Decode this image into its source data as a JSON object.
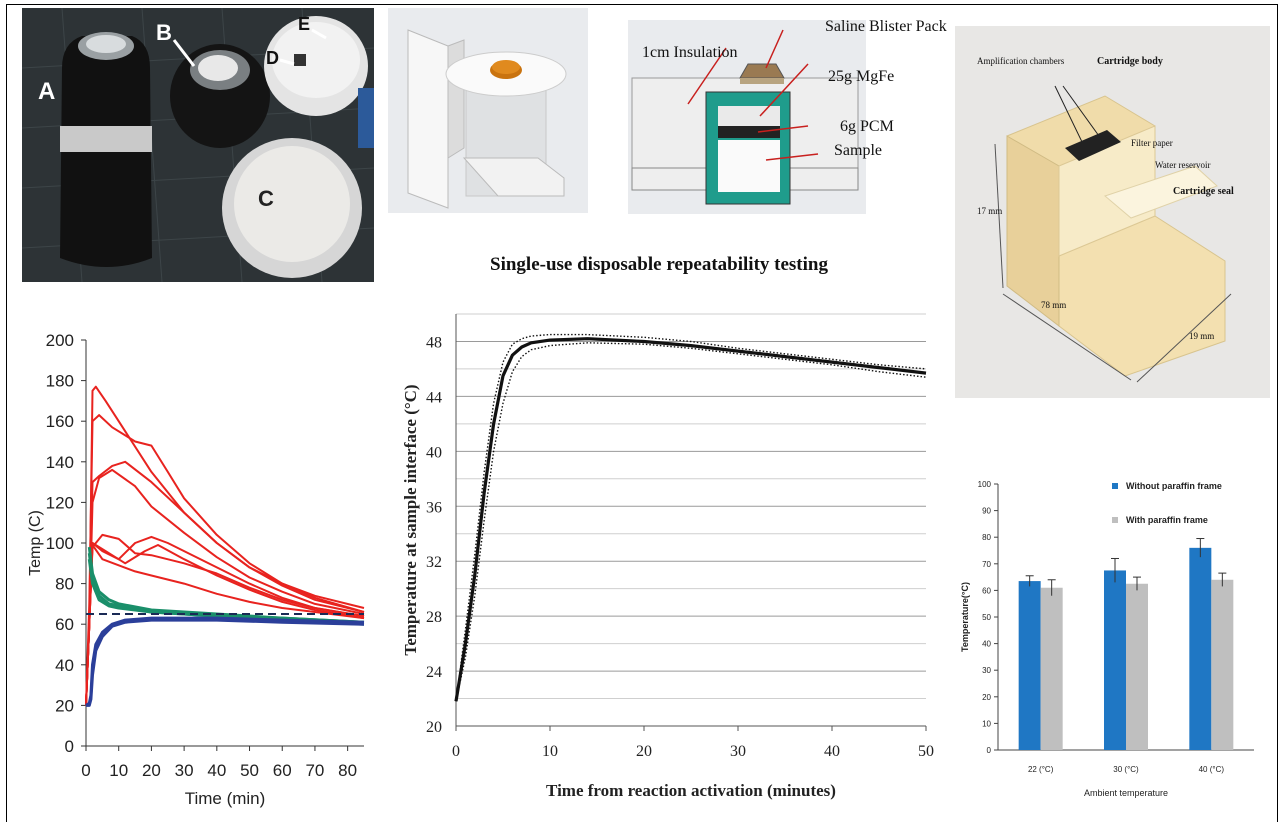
{
  "photo": {
    "labels": [
      "A",
      "B",
      "C",
      "D",
      "E"
    ]
  },
  "device_diagram": {
    "labels": {
      "blister": "Saline Blister Pack",
      "insulation": "1cm Insulation",
      "mgfe": "25g MgFe",
      "pcm": "6g PCM",
      "sample": "Sample"
    }
  },
  "cartridge": {
    "labels": {
      "amplification": "Amplification chambers",
      "body": "Cartridge body",
      "filter": "Filter paper",
      "reservoir": "Water reservoir",
      "seal": "Cartridge seal",
      "dim_height": "17 mm",
      "dim_length": "78 mm",
      "dim_width": "19 mm"
    }
  },
  "chart_data": [
    {
      "id": "temp_profiles",
      "type": "line",
      "title": "",
      "xlabel": "Time (min)",
      "ylabel": "Temp (C)",
      "xlim": [
        0,
        85
      ],
      "ylim": [
        0,
        200
      ],
      "xticks": [
        0,
        10,
        20,
        30,
        40,
        50,
        60,
        70,
        80
      ],
      "yticks": [
        0,
        20,
        40,
        60,
        80,
        100,
        120,
        140,
        160,
        180,
        200
      ],
      "reference_line": 65,
      "colors": {
        "red": "#e8231f",
        "green": "#1a8f6a",
        "blue": "#2b3f9a",
        "dash": "#1a2a55"
      },
      "series": [
        {
          "color": "red",
          "points": [
            [
              0,
              20
            ],
            [
              1,
              60
            ],
            [
              2,
              175
            ],
            [
              3,
              177
            ],
            [
              6,
              170
            ],
            [
              10,
              160
            ],
            [
              20,
              135
            ],
            [
              30,
              115
            ],
            [
              40,
              100
            ],
            [
              50,
              88
            ],
            [
              60,
              80
            ],
            [
              70,
              74
            ],
            [
              85,
              68
            ]
          ]
        },
        {
          "color": "red",
          "points": [
            [
              0,
              20
            ],
            [
              1,
              70
            ],
            [
              2,
              160
            ],
            [
              4,
              163
            ],
            [
              8,
              157
            ],
            [
              15,
              150
            ],
            [
              20,
              148
            ],
            [
              25,
              135
            ],
            [
              30,
              122
            ],
            [
              40,
              104
            ],
            [
              50,
              90
            ],
            [
              60,
              80
            ],
            [
              70,
              73
            ],
            [
              85,
              66
            ]
          ]
        },
        {
          "color": "red",
          "points": [
            [
              0,
              20
            ],
            [
              1,
              60
            ],
            [
              2,
              130
            ],
            [
              4,
              133
            ],
            [
              8,
              138
            ],
            [
              12,
              140
            ],
            [
              20,
              130
            ],
            [
              30,
              115
            ],
            [
              40,
              100
            ],
            [
              50,
              88
            ],
            [
              60,
              79
            ],
            [
              70,
              72
            ],
            [
              85,
              66
            ]
          ]
        },
        {
          "color": "red",
          "points": [
            [
              0,
              20
            ],
            [
              1,
              60
            ],
            [
              2,
              120
            ],
            [
              4,
              132
            ],
            [
              8,
              136
            ],
            [
              15,
              128
            ],
            [
              20,
              118
            ],
            [
              30,
              105
            ],
            [
              40,
              93
            ],
            [
              50,
              83
            ],
            [
              60,
              76
            ],
            [
              70,
              70
            ],
            [
              85,
              65
            ]
          ]
        },
        {
          "color": "red",
          "points": [
            [
              0,
              20
            ],
            [
              1,
              60
            ],
            [
              2,
              98
            ],
            [
              5,
              104
            ],
            [
              10,
              102
            ],
            [
              15,
              95
            ],
            [
              20,
              94
            ],
            [
              30,
              90
            ],
            [
              40,
              85
            ],
            [
              50,
              78
            ],
            [
              60,
              72
            ],
            [
              70,
              68
            ],
            [
              85,
              64
            ]
          ]
        },
        {
          "color": "red",
          "points": [
            [
              0,
              20
            ],
            [
              1,
              60
            ],
            [
              2,
              100
            ],
            [
              5,
              96
            ],
            [
              10,
              92
            ],
            [
              15,
              100
            ],
            [
              20,
              103
            ],
            [
              25,
              100
            ],
            [
              30,
              96
            ],
            [
              40,
              88
            ],
            [
              50,
              80
            ],
            [
              60,
              73
            ],
            [
              70,
              68
            ],
            [
              85,
              64
            ]
          ]
        },
        {
          "color": "red",
          "points": [
            [
              0,
              20
            ],
            [
              1,
              60
            ],
            [
              2,
              100
            ],
            [
              5,
              97
            ],
            [
              8,
              94
            ],
            [
              12,
              90
            ],
            [
              18,
              96
            ],
            [
              22,
              99
            ],
            [
              30,
              92
            ],
            [
              40,
              84
            ],
            [
              50,
              77
            ],
            [
              60,
              71
            ],
            [
              70,
              67
            ],
            [
              85,
              63
            ]
          ]
        },
        {
          "color": "red",
          "points": [
            [
              0,
              20
            ],
            [
              1,
              60
            ],
            [
              2,
              99
            ],
            [
              5,
              92
            ],
            [
              10,
              89
            ],
            [
              15,
              86
            ],
            [
              20,
              84
            ],
            [
              30,
              80
            ],
            [
              40,
              75
            ],
            [
              50,
              71
            ],
            [
              60,
              68
            ],
            [
              70,
              66
            ],
            [
              85,
              63
            ]
          ]
        },
        {
          "color": "green",
          "points": [
            [
              1,
              98
            ],
            [
              2,
              85
            ],
            [
              4,
              76
            ],
            [
              7,
              72
            ],
            [
              10,
              70
            ],
            [
              20,
              67
            ],
            [
              30,
              66
            ],
            [
              40,
              65
            ],
            [
              60,
              63
            ],
            [
              85,
              61
            ]
          ]
        },
        {
          "color": "green",
          "points": [
            [
              1,
              95
            ],
            [
              2,
              82
            ],
            [
              4,
              74
            ],
            [
              7,
              70
            ],
            [
              10,
              69
            ],
            [
              20,
              66
            ],
            [
              30,
              65
            ],
            [
              40,
              64
            ],
            [
              60,
              63
            ],
            [
              85,
              61
            ]
          ]
        },
        {
          "color": "green",
          "points": [
            [
              1,
              92
            ],
            [
              2,
              80
            ],
            [
              4,
              72
            ],
            [
              7,
              69
            ],
            [
              10,
              68
            ],
            [
              20,
              66
            ],
            [
              30,
              65
            ],
            [
              40,
              64
            ],
            [
              60,
              62
            ],
            [
              85,
              60
            ]
          ]
        },
        {
          "color": "blue",
          "points": [
            [
              0,
              20
            ],
            [
              1,
              21
            ],
            [
              1.5,
              25
            ],
            [
              2,
              40
            ],
            [
              3,
              50
            ],
            [
              5,
              56
            ],
            [
              8,
              60
            ],
            [
              12,
              62
            ],
            [
              20,
              63
            ],
            [
              40,
              63
            ],
            [
              60,
              62
            ],
            [
              85,
              61
            ]
          ]
        },
        {
          "color": "blue",
          "points": [
            [
              0,
              20
            ],
            [
              1,
              20
            ],
            [
              1.5,
              23
            ],
            [
              2,
              35
            ],
            [
              3,
              47
            ],
            [
              5,
              54
            ],
            [
              8,
              59
            ],
            [
              12,
              61
            ],
            [
              20,
              62
            ],
            [
              40,
              62
            ],
            [
              60,
              61
            ],
            [
              85,
              60
            ]
          ]
        }
      ]
    },
    {
      "id": "repeatability",
      "type": "line",
      "title": "Single-use disposable repeatability testing",
      "xlabel": "Time from reaction activation (minutes)",
      "ylabel": "Temperature at sample interface (°C)",
      "xlim": [
        0,
        50
      ],
      "ylim": [
        20,
        50
      ],
      "xticks": [
        0,
        10,
        20,
        30,
        40,
        50
      ],
      "yticks": [
        20,
        24,
        28,
        32,
        36,
        40,
        44,
        48
      ],
      "series": [
        {
          "style": "solid",
          "points": [
            [
              0,
              21.8
            ],
            [
              1,
              26
            ],
            [
              2,
              31
            ],
            [
              3,
              37
            ],
            [
              4,
              42
            ],
            [
              5,
              45.5
            ],
            [
              6,
              47
            ],
            [
              7,
              47.6
            ],
            [
              8,
              47.9
            ],
            [
              10,
              48.1
            ],
            [
              14,
              48.2
            ],
            [
              20,
              48.0
            ],
            [
              25,
              47.7
            ],
            [
              30,
              47.3
            ],
            [
              35,
              46.9
            ],
            [
              40,
              46.5
            ],
            [
              45,
              46.1
            ],
            [
              50,
              45.7
            ]
          ]
        },
        {
          "style": "dotted",
          "points": [
            [
              0,
              21.8
            ],
            [
              1,
              27
            ],
            [
              2,
              32.5
            ],
            [
              3,
              38.5
            ],
            [
              4,
              43.5
            ],
            [
              5,
              46.5
            ],
            [
              6,
              47.8
            ],
            [
              7,
              48.2
            ],
            [
              8,
              48.4
            ],
            [
              10,
              48.5
            ],
            [
              14,
              48.5
            ],
            [
              20,
              48.3
            ],
            [
              25,
              48.0
            ],
            [
              30,
              47.5
            ],
            [
              35,
              47.1
            ],
            [
              40,
              46.7
            ],
            [
              45,
              46.3
            ],
            [
              50,
              46.0
            ]
          ]
        },
        {
          "style": "dotted",
          "points": [
            [
              0,
              21.8
            ],
            [
              1,
              25
            ],
            [
              2,
              29.5
            ],
            [
              3,
              35
            ],
            [
              4,
              40
            ],
            [
              5,
              43.5
            ],
            [
              6,
              45.8
            ],
            [
              7,
              46.9
            ],
            [
              8,
              47.4
            ],
            [
              10,
              47.7
            ],
            [
              14,
              47.9
            ],
            [
              20,
              47.8
            ],
            [
              25,
              47.5
            ],
            [
              30,
              47.1
            ],
            [
              35,
              46.7
            ],
            [
              40,
              46.3
            ],
            [
              45,
              45.8
            ],
            [
              50,
              45.4
            ]
          ]
        }
      ]
    },
    {
      "id": "ambient_bars",
      "type": "bar",
      "title": "",
      "xlabel": "Ambient temperature",
      "ylabel": "Temperature(°C)",
      "ylim": [
        0,
        100
      ],
      "yticks": [
        0,
        10,
        20,
        30,
        40,
        50,
        60,
        70,
        80,
        90,
        100
      ],
      "categories": [
        "22 (°C)",
        "30 (°C)",
        "40 (°C)"
      ],
      "legend_position": "top-right",
      "series": [
        {
          "name": "Without paraffin frame",
          "color": "#1f77c4",
          "values": [
            63.5,
            67.5,
            76
          ],
          "errors": [
            2,
            4.5,
            3.5
          ]
        },
        {
          "name": "With paraffin frame",
          "color": "#bfbfbf",
          "values": [
            61,
            62.5,
            64
          ],
          "errors": [
            3,
            2.5,
            2.5
          ]
        }
      ]
    }
  ]
}
